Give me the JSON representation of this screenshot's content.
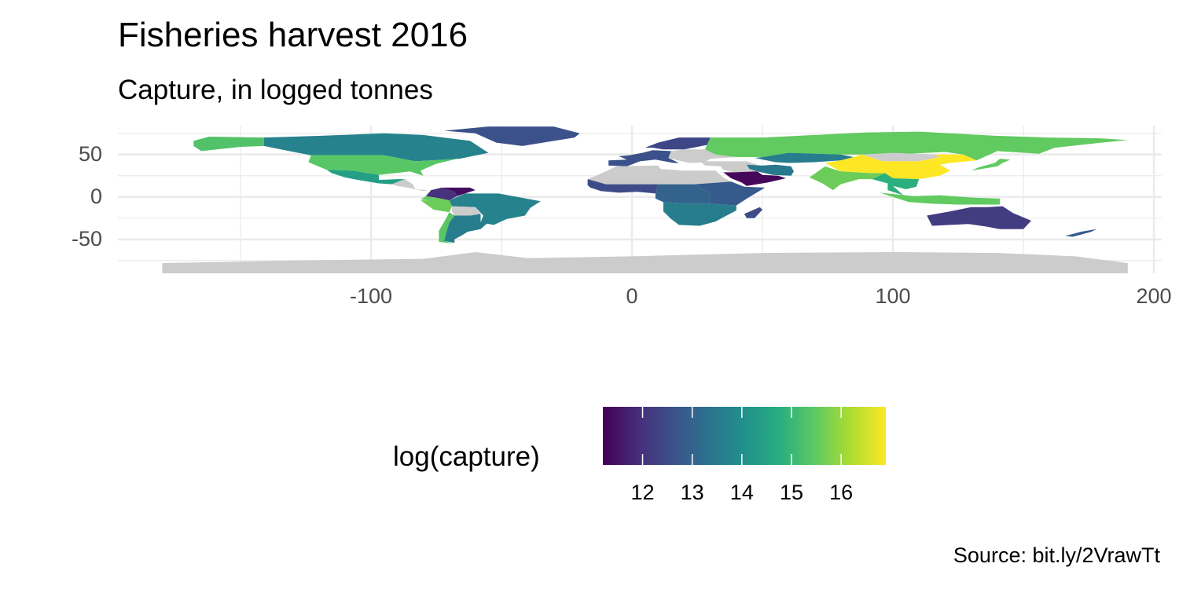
{
  "title": "Fisheries harvest 2016",
  "subtitle": "Capture, in logged tonnes",
  "caption": "Source: bit.ly/2VrawTt",
  "chart_data": {
    "type": "choropleth-map",
    "x_ticks": [
      "-100",
      "0",
      "100",
      "200"
    ],
    "x_tick_values": [
      -100,
      0,
      100,
      200
    ],
    "y_ticks": [
      "50",
      "0",
      "-50"
    ],
    "y_tick_values": [
      50,
      0,
      -50
    ],
    "xlim": [
      -197,
      203
    ],
    "ylim": [
      -90,
      84
    ],
    "grid": true,
    "legend": {
      "title": "log(capture)",
      "labels": [
        "12",
        "13",
        "14",
        "15",
        "16"
      ],
      "values": [
        12,
        13,
        14,
        15,
        16
      ],
      "range": [
        11.2,
        16.9
      ],
      "placement": "bottom",
      "colormap": "viridis"
    },
    "missing_color": "#cccccc",
    "regions": [
      {
        "name": "Alaska",
        "value": 15.3
      },
      {
        "name": "Canada",
        "value": 13.7
      },
      {
        "name": "Greenland",
        "value": 12.6
      },
      {
        "name": "United States",
        "value": 15.4
      },
      {
        "name": "Mexico",
        "value": 14.4
      },
      {
        "name": "Central America",
        "value": null
      },
      {
        "name": "Venezuela",
        "value": 11.4
      },
      {
        "name": "Colombia",
        "value": 12.0
      },
      {
        "name": "Ecuador",
        "value": 15.5
      },
      {
        "name": "Peru",
        "value": 15.6
      },
      {
        "name": "Brazil",
        "value": 13.7
      },
      {
        "name": "Bolivia",
        "value": null
      },
      {
        "name": "Argentina",
        "value": 13.6
      },
      {
        "name": "Chile",
        "value": 15.4
      },
      {
        "name": "Scandinavia",
        "value": 12.4
      },
      {
        "name": "Western Europe",
        "value": 12.6
      },
      {
        "name": "Eastern Europe",
        "value": null
      },
      {
        "name": "Russia",
        "value": 15.5
      },
      {
        "name": "Kazakhstan",
        "value": 13.6
      },
      {
        "name": "Middle East",
        "value": null
      },
      {
        "name": "Saudi Arabia",
        "value": 11.3
      },
      {
        "name": "Iran",
        "value": 13.5
      },
      {
        "name": "North Africa",
        "value": null
      },
      {
        "name": "West Africa",
        "value": 12.5
      },
      {
        "name": "Central Africa",
        "value": 13.0
      },
      {
        "name": "East Africa",
        "value": 12.8
      },
      {
        "name": "Southern Africa",
        "value": 13.6
      },
      {
        "name": "Madagascar",
        "value": 12.5
      },
      {
        "name": "Mongolia",
        "value": null
      },
      {
        "name": "China",
        "value": 16.9
      },
      {
        "name": "India",
        "value": 15.6
      },
      {
        "name": "Southeast Asia",
        "value": 14.8
      },
      {
        "name": "Indonesia",
        "value": 15.5
      },
      {
        "name": "Japan",
        "value": 15.5
      },
      {
        "name": "Australia",
        "value": 12.2
      },
      {
        "name": "New Zealand",
        "value": 12.8
      },
      {
        "name": "Antarctica",
        "value": null
      }
    ]
  }
}
